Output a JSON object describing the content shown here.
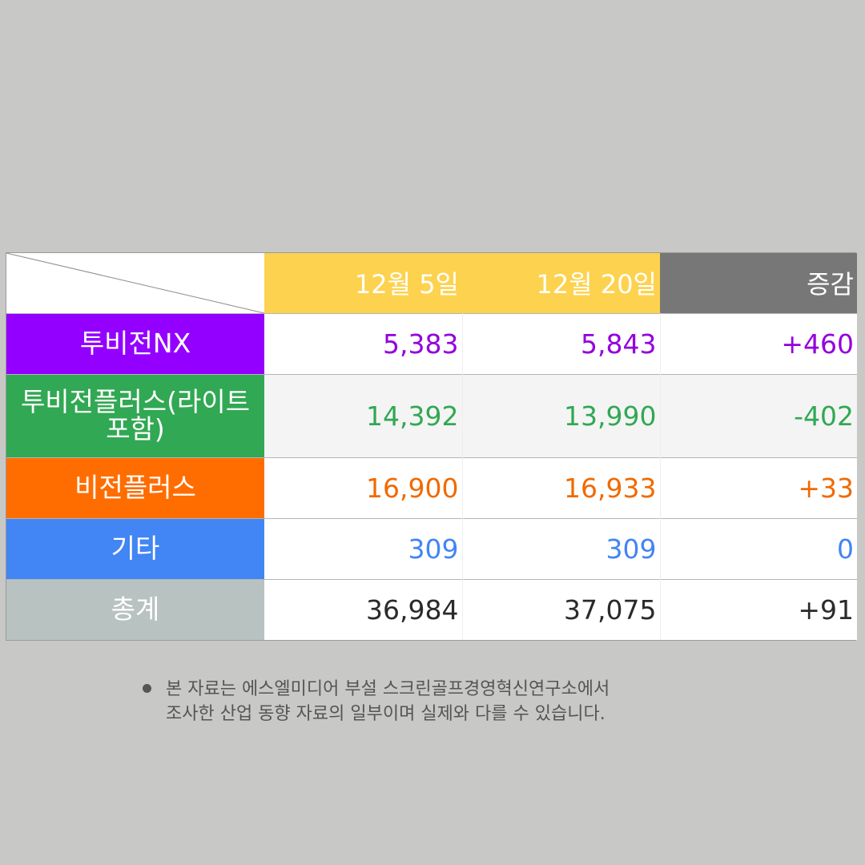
{
  "table": {
    "headers": [
      "",
      "12월 5일",
      "12월 20일",
      "증감"
    ],
    "header_colors": [
      "#ffffff",
      "#fdd24f",
      "#fdd24f",
      "#777777"
    ],
    "rows": [
      {
        "label": "투비전NX",
        "label_bg": "#9400ff",
        "text_color": "#9400dd",
        "row_bg": "#ffffff",
        "dec5": "5,383",
        "dec20": "5,843",
        "change": "+460"
      },
      {
        "label": "투비전플러스(라이트\n포함)",
        "label_bg": "#31a853",
        "text_color": "#31a853",
        "row_bg": "#f4f4f4",
        "dec5": "14,392",
        "dec20": "13,990",
        "change": "-402"
      },
      {
        "label": "비전플러스",
        "label_bg": "#ff6d00",
        "text_color": "#f06a00",
        "row_bg": "#ffffff",
        "dec5": "16,900",
        "dec20": "16,933",
        "change": "+33"
      },
      {
        "label": "기타",
        "label_bg": "#4285f4",
        "text_color": "#4285f4",
        "row_bg": "#ffffff",
        "dec5": "309",
        "dec20": "309",
        "change": "0"
      },
      {
        "label": "총계",
        "label_bg": "#b8c2c0",
        "text_color": "#2a2a2a",
        "row_bg": "#ffffff",
        "dec5": "36,984",
        "dec20": "37,075",
        "change": "+91"
      }
    ]
  },
  "footnote": {
    "line1": "본 자료는 에스엘미디어 부설 스크린골프경영혁신연구소에서",
    "line2": "조사한 산업 동향 자료의 일부이며 실제와 다를 수 있습니다."
  }
}
